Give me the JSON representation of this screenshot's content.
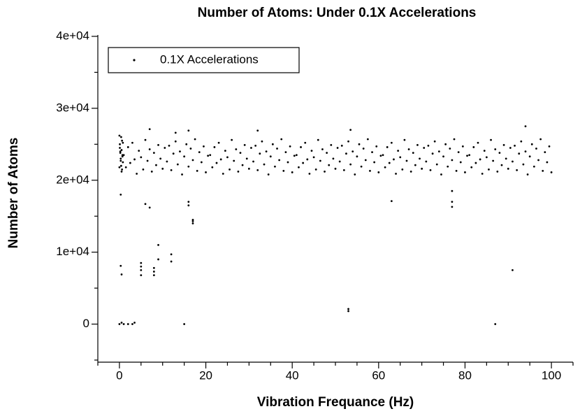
{
  "chart_data": {
    "type": "scatter",
    "title": "Number of Atoms: Under 0.1X Accelerations",
    "x_label": "Vibration Frequance (Hz)",
    "y_label": "Number of Atoms",
    "xlim": [
      -5,
      105
    ],
    "ylim": [
      -5000,
      40000
    ],
    "xticks": [
      0,
      20,
      40,
      60,
      80,
      100
    ],
    "yticks": [
      0,
      {
        "value": 10000,
        "label": "1e+04"
      },
      {
        "value": 20000,
        "label": "2e+04"
      },
      {
        "value": 30000,
        "label": "3e+04"
      },
      {
        "value": 40000,
        "label": "4e+04"
      }
    ],
    "xminorticks": [
      -5,
      5,
      10,
      15,
      25,
      30,
      35,
      45,
      50,
      55,
      65,
      70,
      75,
      85,
      90,
      95,
      105
    ],
    "yminorticks": [
      -5000,
      5000,
      15000,
      25000,
      35000
    ],
    "legend": "upper left",
    "series": [
      {
        "name": "0.1X Accelerations",
        "color": "#000000",
        "x": [
          0,
          0.1,
          0.2,
          0.3,
          0.4,
          0.5,
          0.6,
          0.7,
          0.8,
          0,
          0.1,
          0.2,
          0.3,
          0.4,
          0.5,
          0.6,
          0.7,
          0.8,
          1,
          1.5,
          2,
          2.5,
          3,
          3.5,
          4,
          4.5,
          5,
          5.5,
          6,
          6.5,
          7,
          7.5,
          8,
          8.5,
          9,
          9.5,
          10,
          10.5,
          11,
          11.5,
          12,
          12.5,
          13,
          13.5,
          14,
          14.5,
          15,
          15.5,
          16,
          16.5,
          17,
          17.5,
          18,
          18.5,
          19,
          19.5,
          20,
          20.5,
          21,
          21.5,
          22,
          22.5,
          23,
          23.5,
          24,
          24.5,
          25,
          25.5,
          26,
          26.5,
          27,
          27.5,
          28,
          28.5,
          29,
          29.5,
          30,
          30.5,
          31,
          31.5,
          32,
          32.5,
          33,
          33.5,
          34,
          34.5,
          35,
          35.5,
          36,
          36.5,
          37,
          37.5,
          38,
          38.5,
          39,
          39.5,
          40,
          40.5,
          41,
          41.5,
          42,
          42.5,
          43,
          43.5,
          44,
          44.5,
          45,
          45.5,
          46,
          46.5,
          47,
          47.5,
          48,
          48.5,
          49,
          49.5,
          50,
          50.5,
          51,
          51.5,
          52,
          52.5,
          53,
          53.5,
          54,
          54.5,
          55,
          55.5,
          56,
          56.5,
          57,
          57.5,
          58,
          58.5,
          59,
          59.5,
          60,
          60.5,
          61,
          61.5,
          62,
          62.5,
          63,
          63.5,
          64,
          64.5,
          65,
          65.5,
          66,
          66.5,
          67,
          67.5,
          68,
          68.5,
          69,
          69.5,
          70,
          70.5,
          71,
          71.5,
          72,
          72.5,
          73,
          73.5,
          74,
          74.5,
          75,
          75.5,
          76,
          76.5,
          77,
          77.5,
          78,
          78.5,
          79,
          79.5,
          80,
          80.5,
          81,
          81.5,
          82,
          82.5,
          83,
          83.5,
          84,
          84.5,
          85,
          85.5,
          86,
          86.5,
          87,
          87.5,
          88,
          88.5,
          89,
          89.5,
          90,
          90.5,
          91,
          91.5,
          92,
          92.5,
          93,
          93.5,
          94,
          94.5,
          95,
          95.5,
          96,
          96.5,
          97,
          97.5,
          98,
          98.5,
          99,
          99.5,
          100,
          0.3,
          0.3,
          0.5,
          0,
          0.5,
          1,
          2,
          3,
          3.5,
          5,
          5,
          5,
          5,
          8,
          8,
          8,
          9,
          9,
          12,
          12,
          6,
          7,
          15,
          16,
          16,
          17,
          17,
          17,
          53,
          53,
          63,
          77,
          77,
          77,
          87,
          91,
          94,
          53.5,
          32,
          16,
          13,
          7
        ],
        "values": [
          26200,
          25000,
          24000,
          23000,
          22000,
          21200,
          25500,
          23500,
          22500,
          21800,
          24500,
          23800,
          22700,
          26000,
          24200,
          21500,
          23300,
          25200,
          23500,
          21800,
          24600,
          22400,
          25200,
          22900,
          20900,
          24100,
          23200,
          21500,
          25600,
          22700,
          24300,
          21200,
          23800,
          22100,
          24900,
          23000,
          21600,
          24500,
          22600,
          24800,
          21400,
          23700,
          25400,
          22200,
          24000,
          20800,
          23300,
          25000,
          21900,
          24400,
          22800,
          25700,
          21300,
          23900,
          22500,
          24700,
          21100,
          23400,
          23500,
          21800,
          24600,
          22400,
          25200,
          22900,
          20900,
          24100,
          23200,
          21500,
          25600,
          22700,
          24300,
          21200,
          23800,
          22100,
          24900,
          23000,
          21600,
          24500,
          22600,
          24800,
          21400,
          23700,
          25400,
          22200,
          24000,
          20800,
          23300,
          25000,
          21900,
          24400,
          22800,
          25700,
          21300,
          23900,
          22500,
          24700,
          21100,
          23400,
          23500,
          21800,
          24600,
          22400,
          25200,
          22900,
          20900,
          24100,
          23200,
          21500,
          25600,
          22700,
          24300,
          21200,
          23800,
          22100,
          24900,
          23000,
          21600,
          24500,
          22600,
          24800,
          21400,
          23700,
          25400,
          22200,
          24000,
          20800,
          23300,
          25000,
          21900,
          24400,
          22800,
          25700,
          21300,
          23900,
          22500,
          24700,
          21100,
          23400,
          23500,
          21800,
          24600,
          22400,
          25200,
          22900,
          20900,
          24100,
          23200,
          21500,
          25600,
          22700,
          24300,
          21200,
          23800,
          22100,
          24900,
          23000,
          21600,
          24500,
          22600,
          24800,
          21400,
          23700,
          25400,
          22200,
          24000,
          20800,
          23300,
          25000,
          21900,
          24400,
          22800,
          25700,
          21300,
          23900,
          22500,
          24700,
          21100,
          23400,
          23500,
          21800,
          24600,
          22400,
          25200,
          22900,
          20900,
          24100,
          23200,
          21500,
          25600,
          22700,
          24300,
          21200,
          23800,
          22100,
          24900,
          23000,
          21600,
          24500,
          22600,
          24800,
          21400,
          23700,
          25400,
          22200,
          24000,
          20800,
          23300,
          25000,
          21900,
          24400,
          22800,
          25700,
          21300,
          23900,
          22500,
          24700,
          21100,
          18000,
          8100,
          6900,
          0,
          200,
          0,
          0,
          0,
          200,
          8500,
          8000,
          7500,
          6800,
          7800,
          7300,
          6800,
          11000,
          9000,
          9700,
          8700,
          16700,
          16200,
          0,
          17000,
          16500,
          14500,
          14000,
          14300,
          2100,
          1800,
          17100,
          18500,
          17000,
          16300,
          0,
          7500,
          27500,
          27000,
          26900,
          26900,
          26600,
          27100
        ]
      }
    ]
  }
}
